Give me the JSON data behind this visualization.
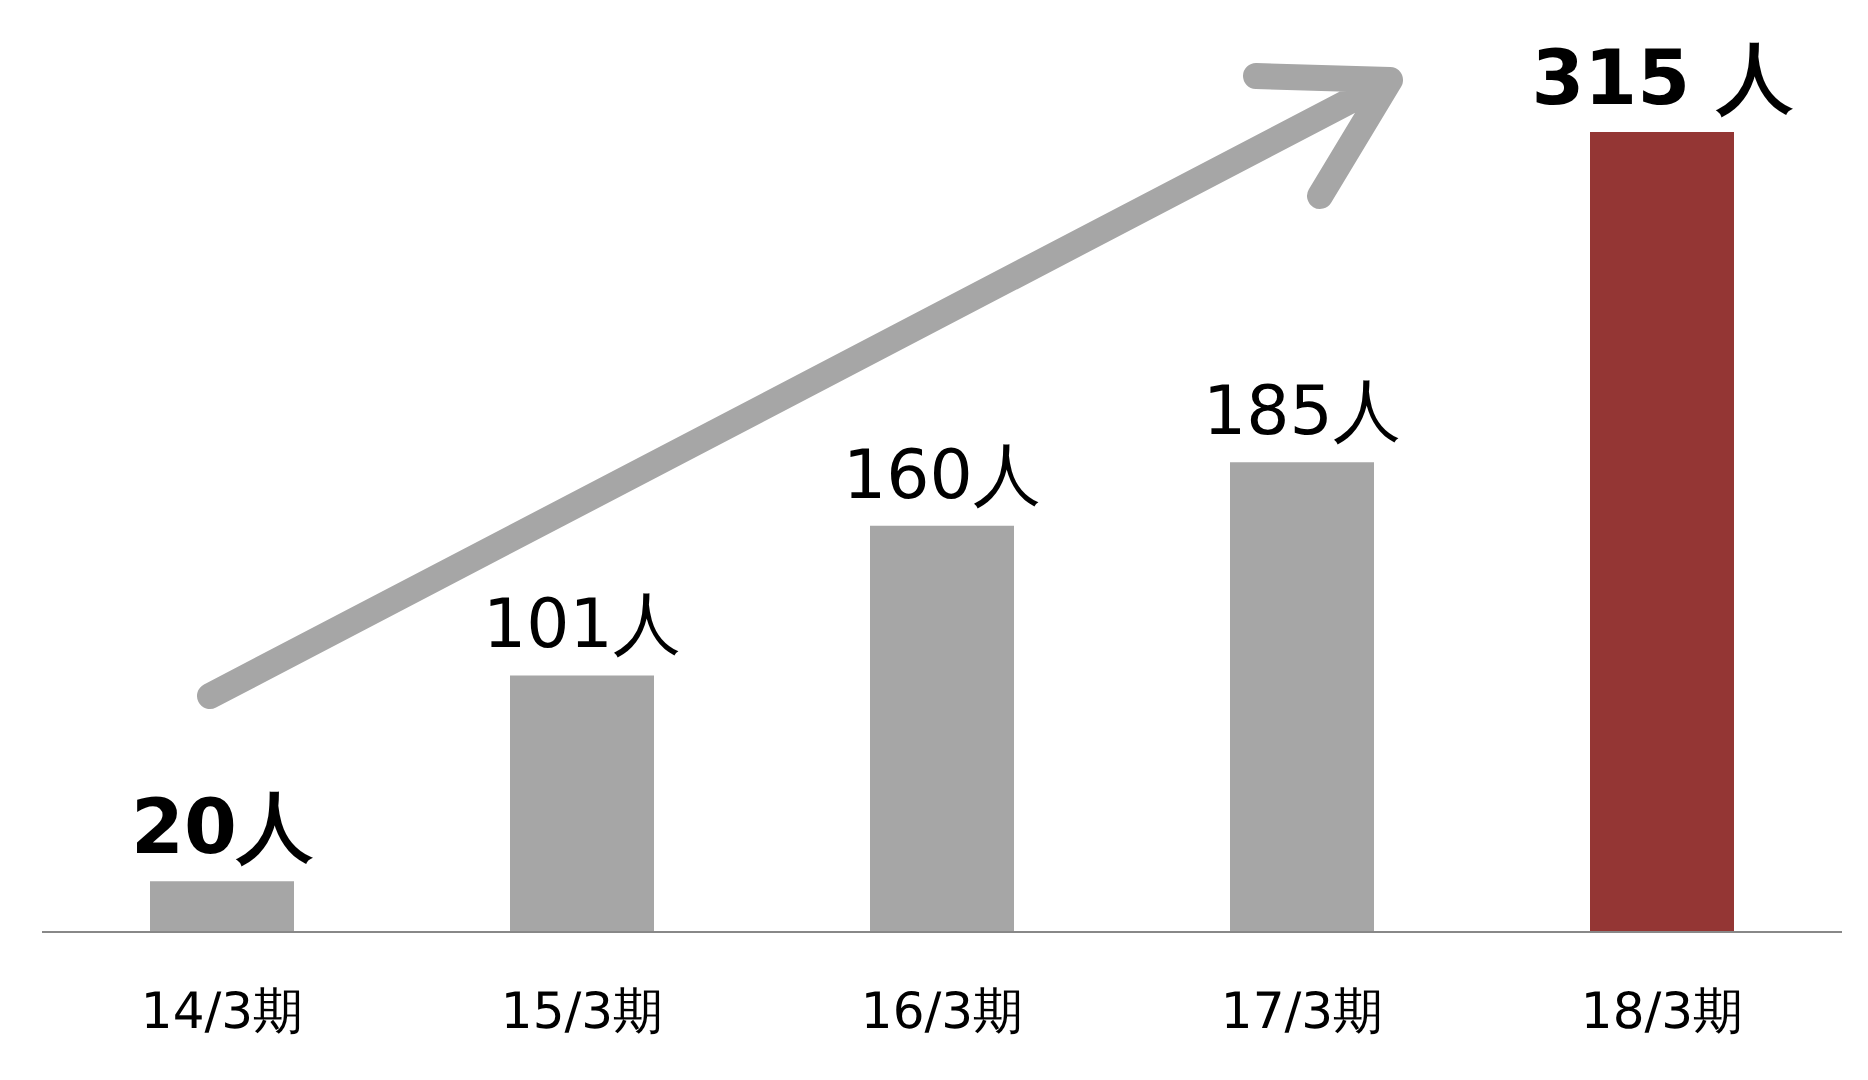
{
  "chart_data": {
    "type": "bar",
    "categories": [
      "14/3期",
      "15/3期",
      "16/3期",
      "17/3期",
      "18/3期"
    ],
    "values": [
      20,
      101,
      160,
      185,
      315
    ],
    "colors": [
      "#a6a6a6",
      "#a6a6a6",
      "#a6a6a6",
      "#a6a6a6",
      "#943634"
    ],
    "value_labels": [
      "20人",
      "101人",
      "160人",
      "185人",
      "315 人"
    ],
    "tick_labels": "x",
    "grid": false,
    "legend": false
  }
}
